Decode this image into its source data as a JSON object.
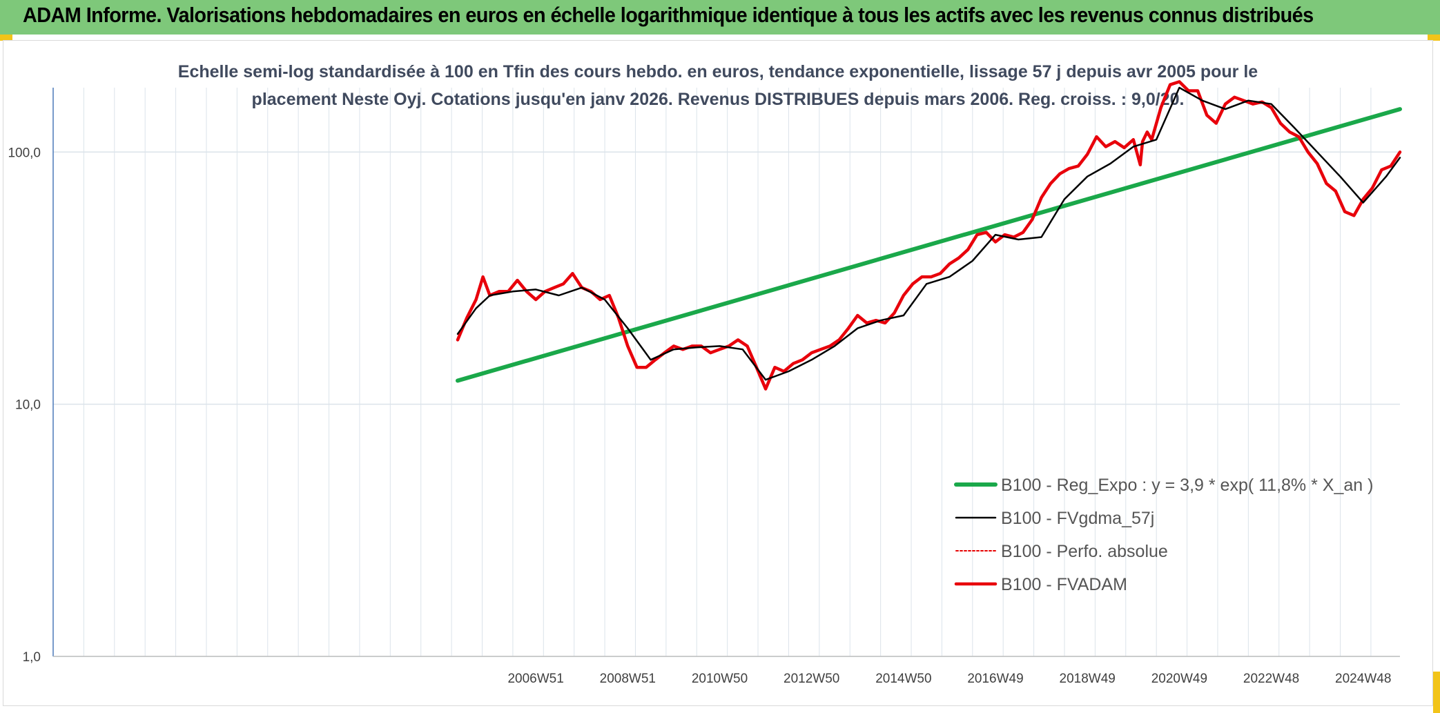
{
  "header": {
    "title": "ADAM Informe. Valorisations hebdomadaires en euros en échelle logarithmique identique à tous les actifs avec les revenus connus distribués"
  },
  "colors": {
    "banner": "#7ec87a",
    "accent_corner": "#f2c419",
    "trend": "#1aa84a",
    "smooth": "#000000",
    "perf": "#e60000",
    "fvadam": "#e8000b",
    "grid": "#dbe3ea",
    "y_axis": "#4a78b8"
  },
  "chart_data": {
    "type": "line",
    "scale": "log",
    "title_lines": [
      "Echelle semi-log standardisée à 100 en Tfin des cours hebdo. en euros, tendance exponentielle, lissage 57 j depuis avr 2005 pour le",
      "placement Neste Oyj. Cotations jusqu'en janv 2026. Revenus DISTRIBUES depuis mars 2006. Reg. croiss. : 9,0/20."
    ],
    "ylim": [
      1,
      180
    ],
    "xlim": [
      1996.5,
      2025.8
    ],
    "y_ticks": [
      {
        "value": 1,
        "label": "1,0"
      },
      {
        "value": 10,
        "label": "10,0"
      },
      {
        "value": 100,
        "label": "100,0"
      }
    ],
    "x_ticks": [
      {
        "value": 2007.0,
        "label": "2006W51"
      },
      {
        "value": 2009.0,
        "label": "2008W51"
      },
      {
        "value": 2011.0,
        "label": "2010W50"
      },
      {
        "value": 2013.0,
        "label": "2012W50"
      },
      {
        "value": 2015.0,
        "label": "2014W50"
      },
      {
        "value": 2017.0,
        "label": "2016W49"
      },
      {
        "value": 2019.0,
        "label": "2018W49"
      },
      {
        "value": 2021.0,
        "label": "2020W49"
      },
      {
        "value": 2023.0,
        "label": "2022W48"
      },
      {
        "value": 2025.0,
        "label": "2024W48"
      }
    ],
    "grid": true,
    "legend_position": "bottom-right",
    "series": [
      {
        "name": "B100 - Reg_Expo : y = 3,9 * exp( 11,8% *  X_an )",
        "role": "trend",
        "x": [
          2005.3,
          2025.8
        ],
        "y": [
          12.4,
          148
        ]
      },
      {
        "name": "B100 - FVgdma_57j",
        "role": "smooth",
        "x": [
          2005.3,
          2005.7,
          2006.0,
          2006.5,
          2007.0,
          2007.5,
          2008.0,
          2008.5,
          2009.0,
          2009.5,
          2010.0,
          2010.5,
          2011.0,
          2011.5,
          2012.0,
          2012.5,
          2013.0,
          2013.5,
          2014.0,
          2014.5,
          2015.0,
          2015.5,
          2016.0,
          2016.5,
          2017.0,
          2017.5,
          2018.0,
          2018.5,
          2019.0,
          2019.5,
          2020.0,
          2020.5,
          2021.0,
          2021.5,
          2022.0,
          2022.5,
          2023.0,
          2023.5,
          2024.0,
          2024.5,
          2025.0,
          2025.5,
          2025.8
        ],
        "y": [
          19,
          24,
          27,
          28,
          28.5,
          27,
          29,
          26,
          20,
          15,
          16.5,
          16.8,
          17,
          16.5,
          12.5,
          13.5,
          15,
          17,
          20,
          21.5,
          22.5,
          30,
          32,
          37,
          47,
          45,
          46,
          65,
          80,
          90,
          105,
          112,
          180,
          160,
          148,
          160,
          155,
          125,
          100,
          80,
          63,
          80,
          95
        ]
      },
      {
        "name": "B100 - Perfo. absolue",
        "role": "perf",
        "x": [],
        "y": []
      },
      {
        "name": "B100 - FVADAM",
        "role": "fvadam",
        "x": [
          2005.3,
          2005.5,
          2005.7,
          2005.85,
          2006.0,
          2006.2,
          2006.4,
          2006.6,
          2006.8,
          2007.0,
          2007.2,
          2007.4,
          2007.6,
          2007.8,
          2008.0,
          2008.2,
          2008.4,
          2008.6,
          2008.8,
          2009.0,
          2009.2,
          2009.4,
          2009.6,
          2009.8,
          2010.0,
          2010.2,
          2010.4,
          2010.6,
          2010.8,
          2011.0,
          2011.2,
          2011.4,
          2011.6,
          2011.8,
          2012.0,
          2012.2,
          2012.4,
          2012.6,
          2012.8,
          2013.0,
          2013.2,
          2013.4,
          2013.6,
          2013.8,
          2014.0,
          2014.2,
          2014.4,
          2014.6,
          2014.8,
          2015.0,
          2015.2,
          2015.4,
          2015.6,
          2015.8,
          2016.0,
          2016.2,
          2016.4,
          2016.6,
          2016.8,
          2017.0,
          2017.2,
          2017.4,
          2017.6,
          2017.8,
          2018.0,
          2018.2,
          2018.4,
          2018.6,
          2018.8,
          2019.0,
          2019.2,
          2019.4,
          2019.6,
          2019.8,
          2020.0,
          2020.15,
          2020.2,
          2020.3,
          2020.4,
          2020.6,
          2020.8,
          2021.0,
          2021.2,
          2021.4,
          2021.6,
          2021.8,
          2022.0,
          2022.2,
          2022.4,
          2022.6,
          2022.8,
          2023.0,
          2023.2,
          2023.4,
          2023.6,
          2023.8,
          2024.0,
          2024.2,
          2024.4,
          2024.6,
          2024.8,
          2025.0,
          2025.2,
          2025.4,
          2025.6,
          2025.8
        ],
        "y": [
          18,
          22,
          26,
          32,
          27,
          28,
          28,
          31,
          28,
          26,
          28,
          29,
          30,
          33,
          29,
          28,
          26,
          27,
          22,
          17,
          14,
          14,
          15,
          16,
          17,
          16.5,
          17,
          17,
          16,
          16.5,
          17,
          18,
          17,
          14,
          11.5,
          14,
          13.5,
          14.5,
          15,
          16,
          16.5,
          17,
          18,
          20,
          22.5,
          21,
          21.5,
          21,
          23,
          27,
          30,
          32,
          32,
          33,
          36,
          38,
          41,
          47,
          48,
          44,
          47,
          46,
          48,
          54,
          66,
          75,
          82,
          86,
          88,
          98,
          115,
          105,
          110,
          104,
          112,
          89,
          110,
          120,
          112,
          150,
          185,
          190,
          175,
          175,
          140,
          130,
          155,
          165,
          160,
          155,
          158,
          150,
          130,
          120,
          115,
          100,
          90,
          75,
          70,
          58,
          56,
          65,
          72,
          85,
          88,
          100
        ]
      }
    ]
  }
}
